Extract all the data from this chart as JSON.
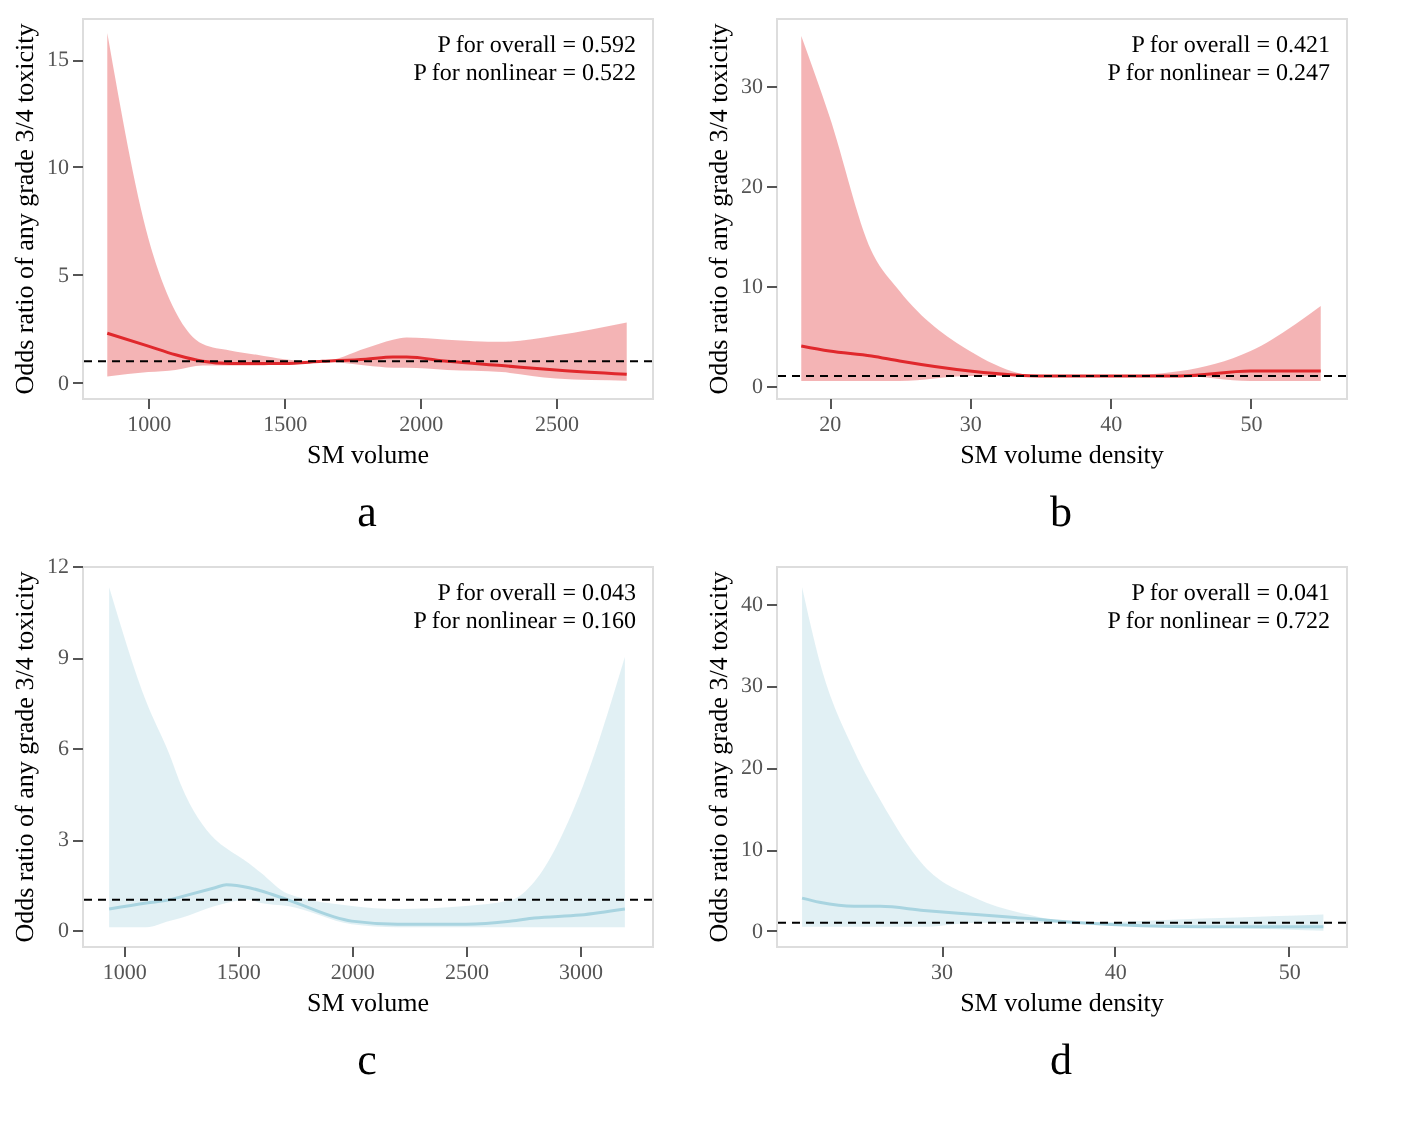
{
  "chart_data": [
    {
      "type": "line",
      "title": "a",
      "xlabel": "SM volume",
      "ylabel": "Odds ratio of any grade 3/4 toxicity",
      "annotations": [
        "P for overall = 0.592",
        "P for nonlinear = 0.522"
      ],
      "xlim": [
        756,
        2853
      ],
      "xticks": [
        1000,
        1500,
        2000,
        2500
      ],
      "ylim": [
        -0.7,
        16.9
      ],
      "yticks": [
        0,
        5,
        10,
        15
      ],
      "grid": false,
      "ref_lines": [
        {
          "axis": "y",
          "value": 1,
          "color": "#000000",
          "line_style": "dashed"
        }
      ],
      "series": [
        {
          "color": "#e0282c",
          "x": [
            849,
            1000,
            1100,
            1200,
            1300,
            1400,
            1500,
            1640,
            1800,
            1900,
            1950,
            2100,
            2300,
            2500,
            2760
          ],
          "values": [
            2.3,
            1.7,
            1.3,
            1.0,
            0.9,
            0.9,
            0.9,
            1.0,
            1.1,
            1.2,
            1.2,
            1.0,
            0.8,
            0.6,
            0.4
          ],
          "upper": [
            16.2,
            6.7,
            3.3,
            1.8,
            1.5,
            1.3,
            1.1,
            1.0,
            1.6,
            2.0,
            2.1,
            2.0,
            1.9,
            2.2,
            2.8
          ],
          "lower": [
            0.3,
            0.5,
            0.6,
            0.8,
            0.8,
            0.8,
            0.9,
            1.0,
            0.8,
            0.7,
            0.7,
            0.6,
            0.5,
            0.2,
            0.1
          ]
        }
      ]
    },
    {
      "type": "line",
      "title": "b",
      "xlabel": "SM volume density",
      "ylabel": "Odds ratio of any grade 3/4 toxicity",
      "annotations": [
        "P for overall = 0.421",
        "P for nonlinear = 0.247"
      ],
      "xlim": [
        16.2,
        56.8
      ],
      "xticks": [
        20,
        30,
        40,
        50
      ],
      "ylim": [
        -1.2,
        36.8
      ],
      "yticks": [
        0,
        10,
        20,
        30
      ],
      "grid": false,
      "ref_lines": [
        {
          "axis": "y",
          "value": 1,
          "color": "#000000",
          "line_style": "dashed"
        }
      ],
      "series": [
        {
          "color": "#e0282c",
          "x": [
            18,
            20,
            23,
            25,
            30,
            35,
            40,
            45,
            50,
            55
          ],
          "values": [
            4,
            3.5,
            3,
            2.5,
            1.5,
            1,
            1,
            1,
            1.5,
            1.5
          ],
          "upper": [
            35,
            27,
            13.5,
            9.5,
            3.5,
            1,
            1,
            1.5,
            3.5,
            8
          ],
          "lower": [
            0.5,
            0.5,
            0.5,
            0.5,
            1,
            1,
            1,
            1,
            0.5,
            0.5
          ]
        }
      ]
    },
    {
      "type": "line",
      "title": "c",
      "xlabel": "SM volume",
      "ylabel": "Odds ratio of any grade 3/4 toxicity",
      "annotations": [
        "P for overall = 0.043",
        "P for nonlinear = 0.160"
      ],
      "xlim": [
        817,
        3316
      ],
      "xticks": [
        1000,
        1500,
        2000,
        2500,
        3000
      ],
      "ylim": [
        -0.52,
        12
      ],
      "yticks": [
        0,
        3,
        6,
        9,
        12
      ],
      "grid": false,
      "ref_lines": [
        {
          "axis": "y",
          "value": 1,
          "color": "#000000",
          "line_style": "dashed"
        }
      ],
      "series": [
        {
          "color": "#a8d4e0",
          "x": [
            936,
            1100,
            1200,
            1250,
            1400,
            1450,
            1550,
            1600,
            1720,
            2000,
            2200,
            2500,
            2700,
            2800,
            3000,
            3197
          ],
          "values": [
            0.7,
            0.9,
            1.0,
            1.1,
            1.4,
            1.5,
            1.4,
            1.3,
            1.0,
            0.3,
            0.2,
            0.2,
            0.3,
            0.4,
            0.5,
            0.7
          ],
          "upper": [
            11.3,
            7.5,
            5.8,
            4.8,
            3.0,
            2.7,
            2.2,
            1.9,
            1.2,
            0.8,
            0.7,
            0.8,
            1.0,
            1.6,
            4.5,
            9.0
          ],
          "lower": [
            0.1,
            0.1,
            0.3,
            0.4,
            0.8,
            0.9,
            1.0,
            0.9,
            0.8,
            0.2,
            0.1,
            0.1,
            0.1,
            0.1,
            0.1,
            0.1
          ]
        }
      ]
    },
    {
      "type": "line",
      "title": "d",
      "xlabel": "SM volume density",
      "ylabel": "Odds ratio of any grade 3/4 toxicity",
      "annotations": [
        "P for overall = 0.041",
        "P for nonlinear = 0.722"
      ],
      "xlim": [
        20.5,
        53.3
      ],
      "xticks": [
        30,
        40,
        50
      ],
      "ylim": [
        -1.85,
        44.6
      ],
      "yticks": [
        0,
        10,
        20,
        30,
        40
      ],
      "grid": false,
      "ref_lines": [
        {
          "axis": "y",
          "value": 1,
          "color": "#000000",
          "line_style": "dashed"
        }
      ],
      "series": [
        {
          "color": "#a8d4e0",
          "x": [
            22,
            23,
            25,
            26.5,
            29,
            32,
            35,
            38,
            45,
            52
          ],
          "values": [
            4,
            3.5,
            3,
            3,
            2.5,
            2,
            1.5,
            1,
            0.5,
            0.5
          ],
          "upper": [
            42,
            33,
            22,
            16,
            8,
            4,
            2,
            1,
            1.5,
            2
          ],
          "lower": [
            0.5,
            0.5,
            0.5,
            0.5,
            0.5,
            1,
            1,
            1,
            0.5,
            0
          ]
        }
      ]
    }
  ]
}
